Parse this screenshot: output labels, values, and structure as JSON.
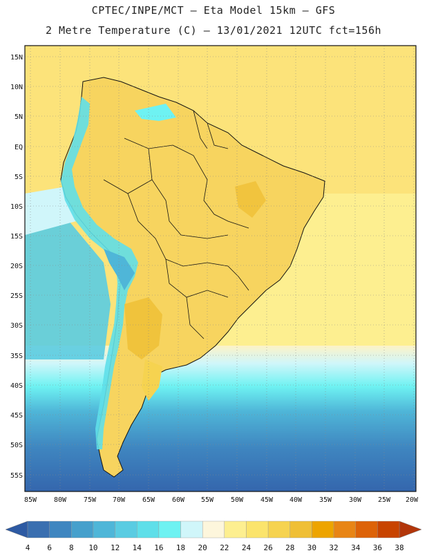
{
  "header": {
    "title_line1": "CPTEC/INPE/MCT –  Eta Model 15km – GFS",
    "title_line2": "2 Metre Temperature (C) – 13/01/2021 12UTC fct=156h"
  },
  "map": {
    "region": "South America",
    "lat_labels": [
      "15N",
      "10N",
      "5N",
      "EQ",
      "5S",
      "10S",
      "15S",
      "20S",
      "25S",
      "30S",
      "35S",
      "40S",
      "45S",
      "50S",
      "55S"
    ],
    "lon_labels": [
      "85W",
      "80W",
      "75W",
      "70W",
      "65W",
      "60W",
      "55W",
      "50W",
      "45W",
      "40W",
      "35W",
      "30W",
      "25W",
      "20W"
    ],
    "colors": {
      "ocean_warm": "#fce37a",
      "ocean_cool": "#fdf3c6",
      "land": "#f7d45f",
      "andes": "#62d6e6"
    }
  },
  "colorbar": {
    "ticks": [
      "4",
      "6",
      "8",
      "10",
      "12",
      "14",
      "16",
      "18",
      "20",
      "22",
      "24",
      "26",
      "28",
      "30",
      "32",
      "34",
      "36",
      "38"
    ],
    "colors": [
      "#3a6fb0",
      "#3f86c0",
      "#46a0cc",
      "#4fb6d8",
      "#5acce2",
      "#5fdfe9",
      "#6ef2f2",
      "#d0f6fa",
      "#fdf6dc",
      "#fdef90",
      "#fbe46c",
      "#f6d350",
      "#efbf36",
      "#eda400",
      "#e88515",
      "#dd6308",
      "#c84400"
    ],
    "under_color": "#2d5aa3",
    "over_color": "#b2360a"
  }
}
